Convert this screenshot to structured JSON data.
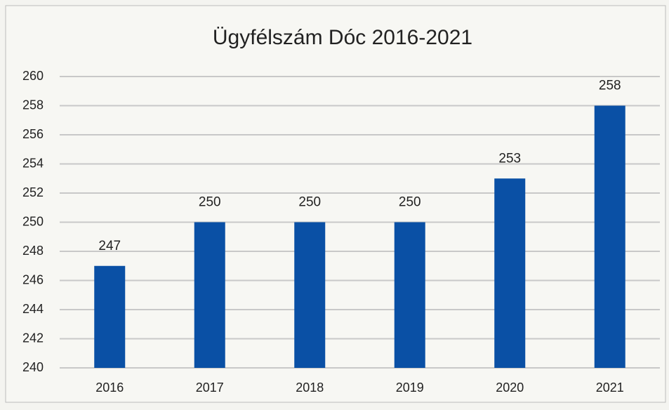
{
  "chart_data": {
    "type": "bar",
    "title": "Ügyfélszám Dóc 2016-2021",
    "categories": [
      "2016",
      "2017",
      "2018",
      "2019",
      "2020",
      "2021"
    ],
    "values": [
      247,
      250,
      250,
      250,
      253,
      258
    ],
    "color": "#0a50a5",
    "ylim": [
      240,
      260
    ],
    "yticks": [
      240,
      242,
      244,
      246,
      248,
      250,
      252,
      254,
      256,
      258,
      260
    ],
    "grid": true
  }
}
